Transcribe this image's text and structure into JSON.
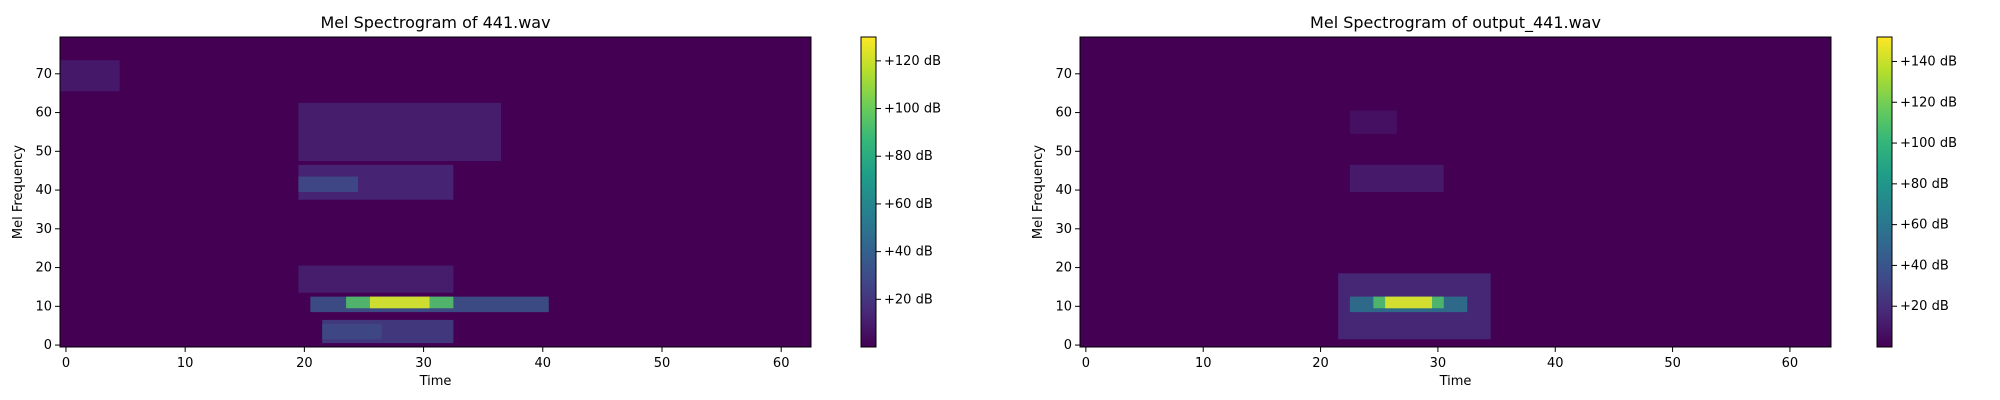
{
  "chart_data": [
    {
      "type": "heatmap",
      "title": "Mel Spectrogram of 441.wav",
      "xlabel": "Time",
      "ylabel": "Mel Frequency",
      "xlim": [
        -0.5,
        62.5
      ],
      "ylim": [
        -0.5,
        79.5
      ],
      "xticks": [
        0,
        10,
        20,
        30,
        40,
        50,
        60
      ],
      "yticks": [
        0,
        10,
        20,
        30,
        40,
        50,
        60,
        70
      ],
      "colormap": "viridis",
      "colorbar": {
        "range": [
          0,
          130
        ],
        "ticks": [
          20,
          40,
          60,
          80,
          100,
          120
        ],
        "tick_labels": [
          "+20 dB",
          "+40 dB",
          "+60 dB",
          "+80 dB",
          "+100 dB",
          "+120 dB"
        ]
      },
      "blobs": [
        {
          "t": [
            0,
            4
          ],
          "m": [
            66,
            73
          ],
          "db": 10
        },
        {
          "t": [
            20,
            36
          ],
          "m": [
            48,
            62
          ],
          "db": 12
        },
        {
          "t": [
            20,
            32
          ],
          "m": [
            38,
            46
          ],
          "db": 15
        },
        {
          "t": [
            20,
            24
          ],
          "m": [
            40,
            43
          ],
          "db": 30
        },
        {
          "t": [
            20,
            32
          ],
          "m": [
            14,
            20
          ],
          "db": 12
        },
        {
          "t": [
            21,
            40
          ],
          "m": [
            9,
            12
          ],
          "db": 35
        },
        {
          "t": [
            24,
            32
          ],
          "m": [
            10,
            12
          ],
          "db": 95
        },
        {
          "t": [
            26,
            30
          ],
          "m": [
            10,
            12
          ],
          "db": 125
        },
        {
          "t": [
            22,
            26
          ],
          "m": [
            2,
            5
          ],
          "db": 50
        },
        {
          "t": [
            22,
            32
          ],
          "m": [
            1,
            6
          ],
          "db": 25
        }
      ]
    },
    {
      "type": "heatmap",
      "title": "Mel Spectrogram of output_441.wav",
      "xlabel": "Time",
      "ylabel": "Mel Frequency",
      "xlim": [
        -0.5,
        63.5
      ],
      "ylim": [
        -0.5,
        79.5
      ],
      "xticks": [
        0,
        10,
        20,
        30,
        40,
        50,
        60
      ],
      "yticks": [
        0,
        10,
        20,
        30,
        40,
        50,
        60,
        70
      ],
      "colormap": "viridis",
      "colorbar": {
        "range": [
          0,
          152
        ],
        "ticks": [
          20,
          40,
          60,
          80,
          100,
          120,
          140
        ],
        "tick_labels": [
          "+20 dB",
          "+40 dB",
          "+60 dB",
          "+80 dB",
          "+100 dB",
          "+120 dB",
          "+140 dB"
        ]
      },
      "blobs": [
        {
          "t": [
            23,
            26
          ],
          "m": [
            55,
            60
          ],
          "db": 8
        },
        {
          "t": [
            23,
            30
          ],
          "m": [
            40,
            46
          ],
          "db": 12
        },
        {
          "t": [
            22,
            34
          ],
          "m": [
            2,
            18
          ],
          "db": 20
        },
        {
          "t": [
            23,
            32
          ],
          "m": [
            9,
            12
          ],
          "db": 60
        },
        {
          "t": [
            25,
            30
          ],
          "m": [
            10,
            12
          ],
          "db": 110
        },
        {
          "t": [
            26,
            29
          ],
          "m": [
            10,
            12
          ],
          "db": 148
        }
      ]
    }
  ]
}
